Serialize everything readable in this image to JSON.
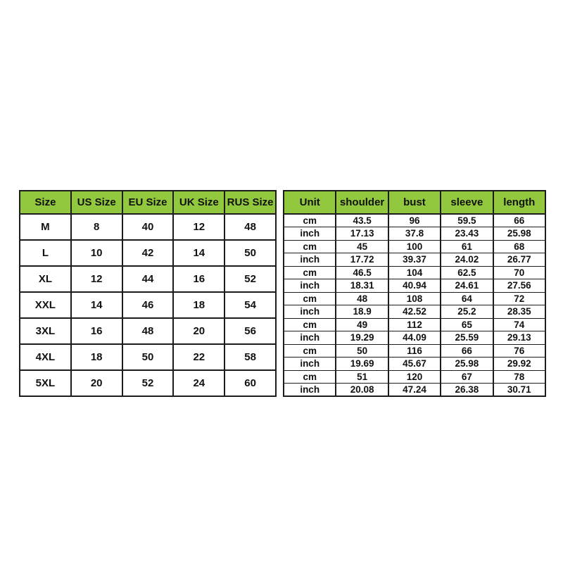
{
  "colors": {
    "header_background": "#92C83E",
    "border": "#1c1c1c",
    "text": "#111111",
    "page_background": "#ffffff"
  },
  "chart_data": [
    {
      "type": "table",
      "name": "size-conversion-table",
      "columns": [
        "Size",
        "US Size",
        "EU Size",
        "UK Size",
        "RUS Size"
      ],
      "rows": [
        [
          "M",
          "8",
          "40",
          "12",
          "48"
        ],
        [
          "L",
          "10",
          "42",
          "14",
          "50"
        ],
        [
          "XL",
          "12",
          "44",
          "16",
          "52"
        ],
        [
          "XXL",
          "14",
          "46",
          "18",
          "54"
        ],
        [
          "3XL",
          "16",
          "48",
          "20",
          "56"
        ],
        [
          "4XL",
          "18",
          "50",
          "22",
          "58"
        ],
        [
          "5XL",
          "20",
          "52",
          "24",
          "60"
        ]
      ]
    },
    {
      "type": "table",
      "name": "measurements-table",
      "columns": [
        "Unit",
        "shoulder",
        "bust",
        "sleeve",
        "length"
      ],
      "rows": [
        [
          "cm",
          "43.5",
          "96",
          "59.5",
          "66"
        ],
        [
          "inch",
          "17.13",
          "37.8",
          "23.43",
          "25.98"
        ],
        [
          "cm",
          "45",
          "100",
          "61",
          "68"
        ],
        [
          "inch",
          "17.72",
          "39.37",
          "24.02",
          "26.77"
        ],
        [
          "cm",
          "46.5",
          "104",
          "62.5",
          "70"
        ],
        [
          "inch",
          "18.31",
          "40.94",
          "24.61",
          "27.56"
        ],
        [
          "cm",
          "48",
          "108",
          "64",
          "72"
        ],
        [
          "inch",
          "18.9",
          "42.52",
          "25.2",
          "28.35"
        ],
        [
          "cm",
          "49",
          "112",
          "65",
          "74"
        ],
        [
          "inch",
          "19.29",
          "44.09",
          "25.59",
          "29.13"
        ],
        [
          "cm",
          "50",
          "116",
          "66",
          "76"
        ],
        [
          "inch",
          "19.69",
          "45.67",
          "25.98",
          "29.92"
        ],
        [
          "cm",
          "51",
          "120",
          "67",
          "78"
        ],
        [
          "inch",
          "20.08",
          "47.24",
          "26.38",
          "30.71"
        ]
      ]
    }
  ]
}
